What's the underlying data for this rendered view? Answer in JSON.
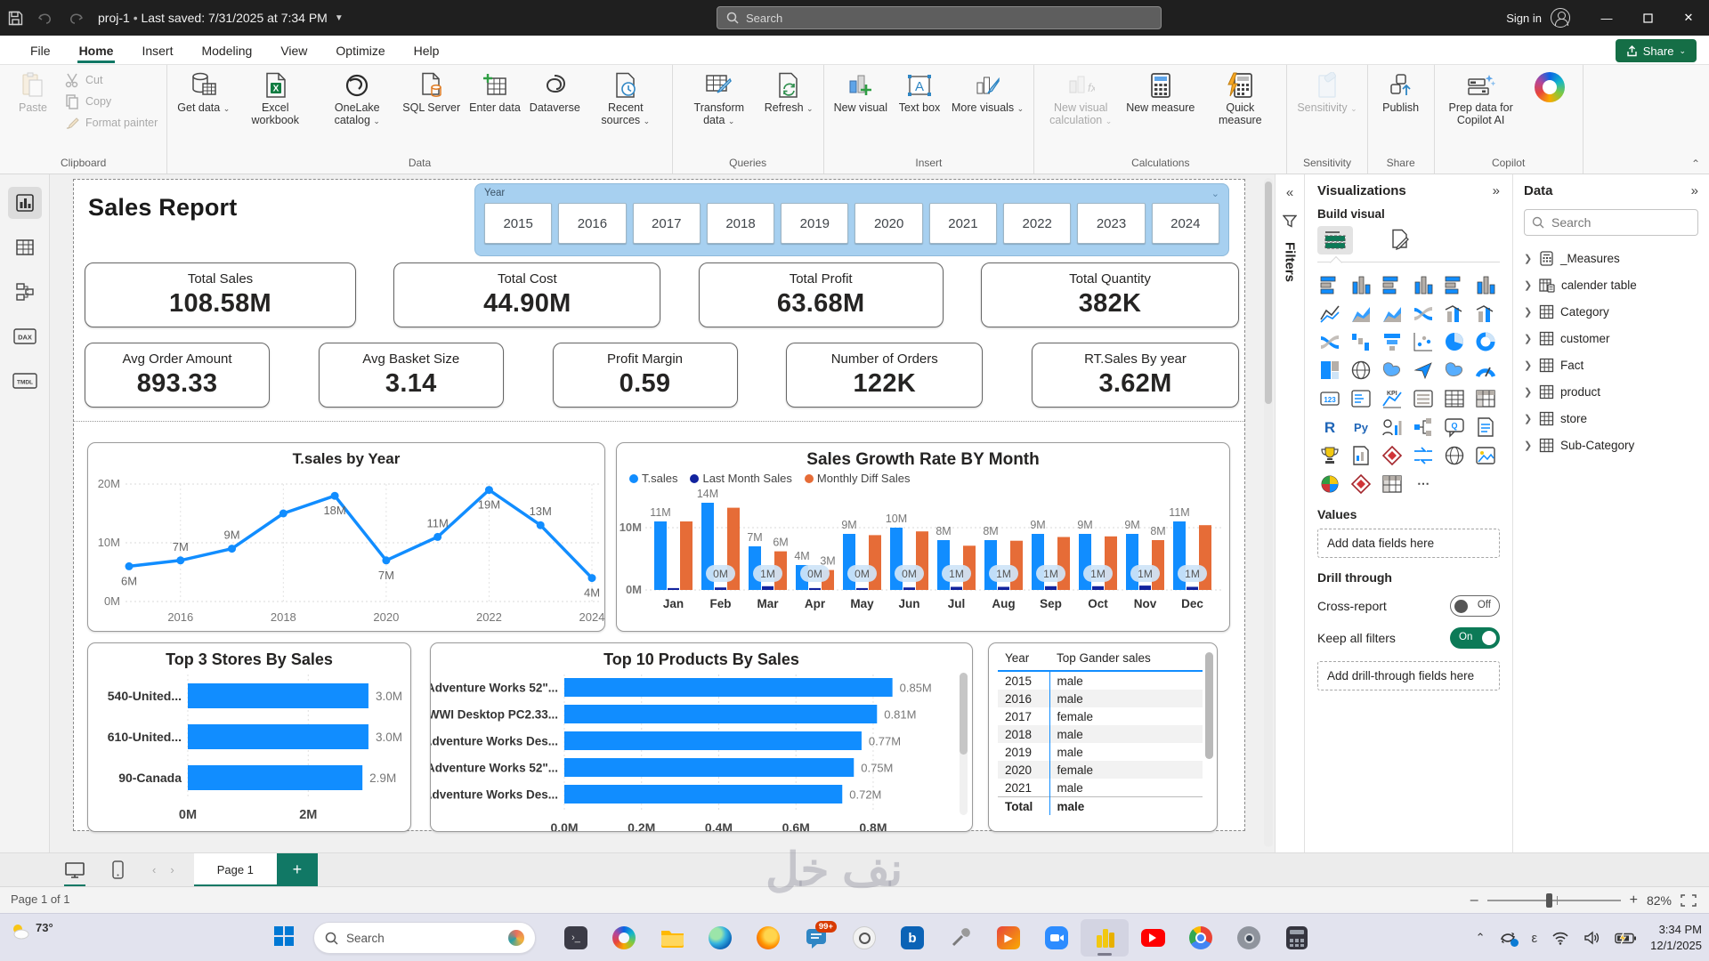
{
  "titlebar": {
    "project_title": "proj-1",
    "last_saved": "Last saved: 7/31/2025 at 7:34 PM",
    "search_placeholder": "Search",
    "sign_in": "Sign in"
  },
  "menubar": {
    "tabs": [
      "File",
      "Home",
      "Insert",
      "Modeling",
      "View",
      "Optimize",
      "Help"
    ],
    "active_tab": "Home",
    "share_label": "Share"
  },
  "ribbon": {
    "groups": [
      {
        "label": "Clipboard",
        "buttons": [
          {
            "label": "Paste",
            "icon": "paste",
            "disabled": true,
            "big": true
          },
          {
            "label": "Cut",
            "icon": "cut",
            "disabled": true,
            "small": true
          },
          {
            "label": "Copy",
            "icon": "copy",
            "disabled": true,
            "small": true
          },
          {
            "label": "Format painter",
            "icon": "brush",
            "disabled": true,
            "small": true
          }
        ]
      },
      {
        "label": "Data",
        "buttons": [
          {
            "label": "Get data",
            "icon": "getdata",
            "dd": true
          },
          {
            "label": "Excel workbook",
            "icon": "excel"
          },
          {
            "label": "OneLake catalog",
            "icon": "onelake",
            "dd": true
          },
          {
            "label": "SQL Server",
            "icon": "sql"
          },
          {
            "label": "Enter data",
            "icon": "enterdata"
          },
          {
            "label": "Dataverse",
            "icon": "dataverse"
          },
          {
            "label": "Recent sources",
            "icon": "recent",
            "dd": true
          }
        ]
      },
      {
        "label": "Queries",
        "buttons": [
          {
            "label": "Transform data",
            "icon": "transform",
            "dd": true
          },
          {
            "label": "Refresh",
            "icon": "refresh",
            "dd": true
          }
        ]
      },
      {
        "label": "Insert",
        "buttons": [
          {
            "label": "New visual",
            "icon": "newvisual"
          },
          {
            "label": "Text box",
            "icon": "textbox"
          },
          {
            "label": "More visuals",
            "icon": "morevisuals",
            "dd": true
          }
        ]
      },
      {
        "label": "Calculations",
        "buttons": [
          {
            "label": "New visual calculation",
            "icon": "fx",
            "disabled": true,
            "dd": true
          },
          {
            "label": "New measure",
            "icon": "calc"
          },
          {
            "label": "Quick measure",
            "icon": "quickcalc"
          }
        ]
      },
      {
        "label": "Sensitivity",
        "buttons": [
          {
            "label": "Sensitivity",
            "icon": "sensitivity",
            "disabled": true,
            "dd": true
          }
        ]
      },
      {
        "label": "Share",
        "buttons": [
          {
            "label": "Publish",
            "icon": "publish"
          }
        ]
      },
      {
        "label": "Copilot",
        "buttons": [
          {
            "label": "Prep data for Copilot AI",
            "icon": "copilotprep"
          },
          {
            "label": "",
            "icon": "copilotlogo"
          }
        ]
      }
    ]
  },
  "view_sidebar": [
    "report-view",
    "table-view",
    "model-view",
    "dax-query-view",
    "tmdl-view"
  ],
  "canvas": {
    "page_title": "Sales Report",
    "watermark": "نف خل",
    "slicer": {
      "title": "Year",
      "years": [
        "2015",
        "2016",
        "2017",
        "2018",
        "2019",
        "2020",
        "2021",
        "2022",
        "2023",
        "2024"
      ]
    },
    "kpi_row1": [
      {
        "label": "Total Sales",
        "value": "108.58M"
      },
      {
        "label": "Total Cost",
        "value": "44.90M"
      },
      {
        "label": "Total Profit",
        "value": "63.68M"
      },
      {
        "label": "Total Quantity",
        "value": "382K"
      }
    ],
    "kpi_row2": [
      {
        "label": "Avg Order Amount",
        "value": "893.33"
      },
      {
        "label": "Avg Basket Size",
        "value": "3.14"
      },
      {
        "label": "Profit Margin",
        "value": "0.59"
      },
      {
        "label": "Number of Orders",
        "value": "122K"
      },
      {
        "label": "RT.Sales By year",
        "value": "3.62M"
      }
    ]
  },
  "chart_data": [
    {
      "type": "line",
      "title": "T.sales by Year",
      "x": [
        2015,
        2016,
        2017,
        2018,
        2019,
        2020,
        2021,
        2022,
        2023,
        2024
      ],
      "series": [
        {
          "name": "T.sales",
          "values": [
            6,
            7,
            9,
            15,
            18,
            7,
            11,
            19,
            13,
            4
          ]
        }
      ],
      "point_labels": [
        "6M",
        "7M",
        "9M",
        null,
        "18M",
        "7M",
        "11M",
        "19M",
        "13M",
        "4M"
      ],
      "label_pos": [
        "below",
        "above",
        "above",
        null,
        "below",
        "below",
        "above",
        "below",
        "above",
        "below"
      ],
      "yticks": [
        "0M",
        "10M",
        "20M"
      ],
      "ylim": [
        0,
        20
      ],
      "xticks": [
        "2016",
        "2018",
        "2020",
        "2022",
        "2024"
      ],
      "color": "#118DFF",
      "grid": true
    },
    {
      "type": "bar",
      "title": "Sales Growth Rate BY Month",
      "categories": [
        "Jan",
        "Feb",
        "Mar",
        "Apr",
        "May",
        "Jun",
        "Jul",
        "Aug",
        "Sep",
        "Oct",
        "Nov",
        "Dec"
      ],
      "series": [
        {
          "name": "T.sales",
          "color": "#118DFF",
          "values": [
            11,
            14,
            7,
            4,
            9,
            10,
            8,
            8,
            9,
            9,
            9,
            11
          ],
          "labels": [
            "11M",
            "14M",
            "7M",
            "4M",
            "9M",
            "10M",
            "8M",
            "8M",
            "9M",
            "9M",
            "9M",
            "11M"
          ]
        },
        {
          "name": "Last Month Sales",
          "color": "#12239E",
          "values": [
            0.3,
            0.4,
            0.6,
            0.3,
            0.3,
            0.4,
            0.5,
            0.5,
            0.6,
            0.6,
            0.7,
            0.5
          ],
          "pill_labels": [
            null,
            "0M",
            "1M",
            "0M",
            "0M",
            "0M",
            "1M",
            "1M",
            "1M",
            "1M",
            "1M",
            "1M"
          ]
        },
        {
          "name": "Monthly Diff Sales",
          "color": "#E66C37",
          "values": [
            11,
            13.2,
            6.2,
            3.2,
            8.8,
            9.4,
            7.1,
            7.9,
            8.5,
            8.6,
            8,
            10.4
          ],
          "labels": [
            null,
            null,
            "6M",
            "3M",
            null,
            null,
            null,
            null,
            null,
            null,
            "8M",
            null
          ]
        }
      ],
      "yticks": [
        "0M",
        "10M"
      ],
      "ylim": [
        0,
        16
      ],
      "legend_position": "top-left"
    },
    {
      "type": "bar-horizontal",
      "title": "Top 3 Stores By Sales",
      "categories": [
        "540-United...",
        "610-United...",
        "90-Canada"
      ],
      "values": [
        3.0,
        3.0,
        2.9
      ],
      "labels": [
        "3.0M",
        "3.0M",
        "2.9M"
      ],
      "xticks": [
        "0M",
        "2M"
      ],
      "xtick_values": [
        0,
        2
      ],
      "xlim": [
        0,
        3.4
      ],
      "color": "#118DFF"
    },
    {
      "type": "bar-horizontal",
      "title": "Top 10 Products By Sales",
      "categories": [
        "Adventure Works 52\"...",
        "WWI Desktop PC2.33...",
        "Adventure Works Des...",
        "Adventure Works 52\"...",
        "Adventure Works Des..."
      ],
      "values": [
        0.85,
        0.81,
        0.77,
        0.75,
        0.72
      ],
      "labels": [
        "0.85M",
        "0.81M",
        "0.77M",
        "0.75M",
        "0.72M"
      ],
      "xticks": [
        "0.0M",
        "0.2M",
        "0.4M",
        "0.6M",
        "0.8M"
      ],
      "xtick_values": [
        0,
        0.2,
        0.4,
        0.6,
        0.8
      ],
      "xlim": [
        0,
        0.95
      ],
      "color": "#118DFF",
      "scrollbar": true
    },
    {
      "type": "table",
      "columns": [
        "Year",
        "Top Gander sales"
      ],
      "rows": [
        [
          "2015",
          "male"
        ],
        [
          "2016",
          "male"
        ],
        [
          "2017",
          "female"
        ],
        [
          "2018",
          "male"
        ],
        [
          "2019",
          "male"
        ],
        [
          "2020",
          "female"
        ],
        [
          "2021",
          "male"
        ]
      ],
      "total_row": [
        "Total",
        "male"
      ]
    }
  ],
  "filters_pane": {
    "title": "Filters"
  },
  "visualizations": {
    "title": "Visualizations",
    "build_visual": "Build visual",
    "icons": [
      "stacked-bar-chart",
      "stacked-column-chart",
      "100-stacked-bar-chart",
      "clustered-column-chart",
      "clustered-bar-chart",
      "100-stacked-column-chart",
      "line-chart",
      "area-chart",
      "stacked-area-chart",
      "ribbon-chart",
      "line-and-stacked-column-chart",
      "line-and-clustered-column-chart",
      "stream-chart",
      "waterfall-chart",
      "funnel-chart",
      "scatter-chart",
      "pie-chart",
      "donut-chart",
      "treemap",
      "map",
      "filled-map",
      "azure-map",
      "shape-map",
      "gauge",
      "card",
      "multi-row-card",
      "kpi",
      "slicer",
      "table",
      "matrix",
      "r-script-visual",
      "python-visual",
      "key-influencers",
      "decomposition-tree",
      "qa-visual",
      "smart-narrative",
      "metrics",
      "paginated-report",
      "power-apps",
      "power-automate",
      "arcgis-map",
      "image",
      "get-more-visuals",
      "pin-visual",
      "layers",
      "more-options"
    ],
    "values_label": "Values",
    "add_data_label": "Add data fields here",
    "drill_label": "Drill through",
    "cross_report_label": "Cross-report",
    "cross_report_state": "Off",
    "keep_filters_label": "Keep all filters",
    "keep_filters_state": "On",
    "add_drill_label": "Add drill-through fields here"
  },
  "data_pane": {
    "title": "Data",
    "search_placeholder": "Search",
    "tables": [
      "_Measures",
      "calender table",
      "Category",
      "customer",
      "Fact",
      "product",
      "store",
      "Sub-Category"
    ]
  },
  "pagebar": {
    "page_tab": "Page 1"
  },
  "statusbar": {
    "page_status": "Page 1 of 1",
    "zoom": "82%"
  },
  "taskbar": {
    "weather": "73°",
    "search_label": "Search",
    "badge": "99+",
    "apps": [
      "terminal",
      "copilot",
      "file-explorer",
      "edge",
      "firefox",
      "messages",
      "chatgpt",
      "bing",
      "tools",
      "multimedia",
      "zoom",
      "power-bi",
      "youtube",
      "chrome",
      "camera",
      "calculator"
    ],
    "time": "3:34 PM",
    "date": "12/1/2025"
  }
}
